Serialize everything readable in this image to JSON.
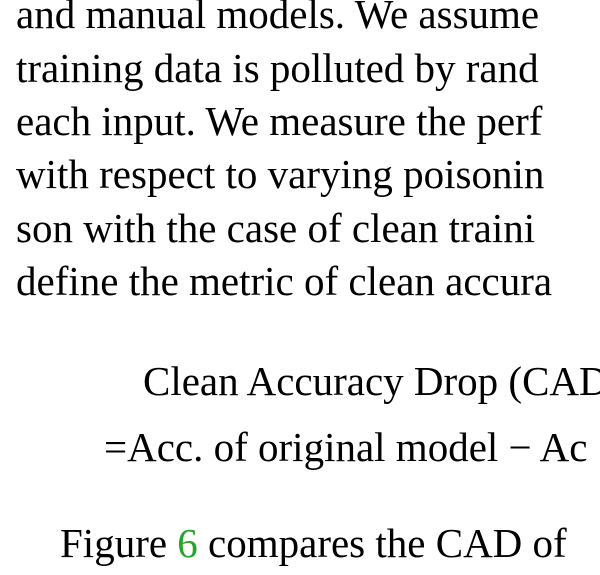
{
  "paragraph": {
    "lines": [
      "and manual models.  We assume",
      "training data is polluted by rand",
      "each input.  We measure the perf",
      "with respect to varying poisonin",
      "son with the case of clean traini",
      "define the metric of clean accura"
    ]
  },
  "equation": {
    "line1": "Clean Accuracy Drop (CAD",
    "line2_eq": "=",
    "line2_text": "Acc. of original model",
    "line2_minus": "−",
    "line2_tail": "Ac"
  },
  "figure_ref": {
    "prefix": "Figure ",
    "ref_number": "6",
    "suffix": " compares the CAD of"
  },
  "colors": {
    "link": "#2aa12a"
  }
}
